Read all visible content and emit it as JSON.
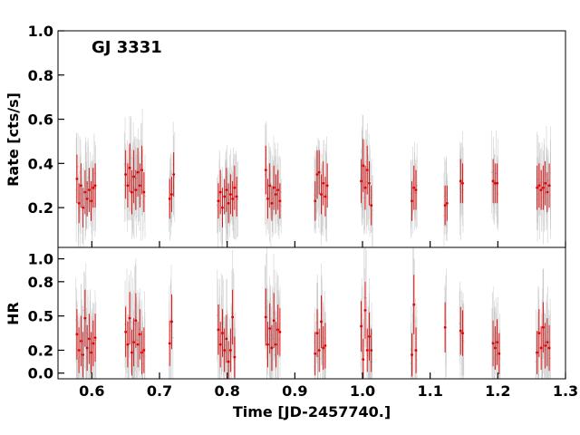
{
  "chart_data": [
    {
      "type": "scatter",
      "panel": "top",
      "title": "GJ 3331",
      "ylabel": "Rate [cts/s]",
      "xlim": [
        0.55,
        1.3
      ],
      "ylim": [
        0.02,
        1.0
      ],
      "yticks": [
        0.2,
        0.4,
        0.6,
        0.8,
        1.0
      ],
      "ytick_labels": [
        "0.2",
        "0.4",
        "0.6",
        "0.8",
        "1.0"
      ],
      "colors": {
        "fine": "#bbbbbb",
        "binned": "#e00000"
      },
      "series": [
        {
          "type": "errorbar",
          "points": [
            [
              0.578,
              0.33,
              0.11
            ],
            [
              0.581,
              0.22,
              0.09
            ],
            [
              0.584,
              0.3,
              0.1
            ],
            [
              0.587,
              0.2,
              0.09
            ],
            [
              0.59,
              0.27,
              0.1
            ],
            [
              0.593,
              0.24,
              0.08
            ],
            [
              0.596,
              0.28,
              0.1
            ],
            [
              0.599,
              0.23,
              0.09
            ],
            [
              0.602,
              0.29,
              0.09
            ],
            [
              0.605,
              0.3,
              0.1
            ],
            [
              0.65,
              0.35,
              0.11
            ],
            [
              0.653,
              0.3,
              0.1
            ],
            [
              0.656,
              0.38,
              0.11
            ],
            [
              0.659,
              0.27,
              0.1
            ],
            [
              0.662,
              0.34,
              0.12
            ],
            [
              0.665,
              0.28,
              0.09
            ],
            [
              0.668,
              0.36,
              0.11
            ],
            [
              0.671,
              0.3,
              0.1
            ],
            [
              0.674,
              0.37,
              0.11
            ],
            [
              0.677,
              0.27,
              0.09
            ],
            [
              0.715,
              0.24,
              0.09
            ],
            [
              0.718,
              0.26,
              0.08
            ],
            [
              0.721,
              0.35,
              0.1
            ],
            [
              0.787,
              0.23,
              0.08
            ],
            [
              0.79,
              0.27,
              0.1
            ],
            [
              0.793,
              0.2,
              0.09
            ],
            [
              0.796,
              0.25,
              0.08
            ],
            [
              0.799,
              0.28,
              0.1
            ],
            [
              0.802,
              0.22,
              0.09
            ],
            [
              0.805,
              0.26,
              0.09
            ],
            [
              0.808,
              0.24,
              0.08
            ],
            [
              0.811,
              0.29,
              0.1
            ],
            [
              0.814,
              0.25,
              0.09
            ],
            [
              0.857,
              0.37,
              0.11
            ],
            [
              0.86,
              0.24,
              0.09
            ],
            [
              0.863,
              0.3,
              0.1
            ],
            [
              0.866,
              0.22,
              0.08
            ],
            [
              0.869,
              0.29,
              0.1
            ],
            [
              0.872,
              0.26,
              0.09
            ],
            [
              0.875,
              0.28,
              0.09
            ],
            [
              0.878,
              0.23,
              0.08
            ],
            [
              0.93,
              0.23,
              0.09
            ],
            [
              0.933,
              0.35,
              0.11
            ],
            [
              0.936,
              0.36,
              0.1
            ],
            [
              0.939,
              0.26,
              0.09
            ],
            [
              0.942,
              0.31,
              0.1
            ],
            [
              0.945,
              0.25,
              0.09
            ],
            [
              0.948,
              0.3,
              0.1
            ],
            [
              0.998,
              0.32,
              0.1
            ],
            [
              1.001,
              0.39,
              0.12
            ],
            [
              1.004,
              0.29,
              0.1
            ],
            [
              1.007,
              0.37,
              0.11
            ],
            [
              1.01,
              0.31,
              0.1
            ],
            [
              1.013,
              0.21,
              0.09
            ],
            [
              1.073,
              0.23,
              0.09
            ],
            [
              1.076,
              0.29,
              0.1
            ],
            [
              1.079,
              0.28,
              0.09
            ],
            [
              1.122,
              0.21,
              0.09
            ],
            [
              1.125,
              0.22,
              0.08
            ],
            [
              1.145,
              0.32,
              0.1
            ],
            [
              1.148,
              0.31,
              0.09
            ],
            [
              1.193,
              0.32,
              0.1
            ],
            [
              1.196,
              0.31,
              0.09
            ],
            [
              1.199,
              0.31,
              0.09
            ],
            [
              1.258,
              0.29,
              0.1
            ],
            [
              1.261,
              0.3,
              0.1
            ],
            [
              1.264,
              0.28,
              0.09
            ],
            [
              1.267,
              0.29,
              0.1
            ],
            [
              1.27,
              0.31,
              0.1
            ],
            [
              1.273,
              0.27,
              0.09
            ],
            [
              1.276,
              0.3,
              0.1
            ]
          ]
        }
      ]
    },
    {
      "type": "scatter",
      "panel": "bottom",
      "xlabel": "Time [JD-2457740.]",
      "ylabel": "HR",
      "xlim": [
        0.55,
        1.3
      ],
      "ylim": [
        -0.05,
        1.1
      ],
      "xticks": [
        0.6,
        0.7,
        0.8,
        0.9,
        1.0,
        1.1,
        1.2,
        1.3
      ],
      "xtick_labels": [
        "0.6",
        "0.7",
        "0.8",
        "0.9",
        "1.0",
        "1.1",
        "1.2",
        "1.3"
      ],
      "yticks": [
        0.0,
        0.2,
        0.5,
        0.8,
        1.0
      ],
      "ytick_labels": [
        "0.0",
        "0.2",
        "0.5",
        "0.8",
        "1.0"
      ],
      "colors": {
        "fine": "#bbbbbb",
        "binned": "#e00000"
      },
      "series": [
        {
          "type": "errorbar",
          "points": [
            [
              0.578,
              0.34,
              0.22
            ],
            [
              0.581,
              0.2,
              0.2
            ],
            [
              0.584,
              0.28,
              0.22
            ],
            [
              0.587,
              0.16,
              0.2
            ],
            [
              0.59,
              0.48,
              0.25
            ],
            [
              0.593,
              0.22,
              0.2
            ],
            [
              0.596,
              0.3,
              0.22
            ],
            [
              0.599,
              0.18,
              0.18
            ],
            [
              0.602,
              0.26,
              0.2
            ],
            [
              0.605,
              0.31,
              0.21
            ],
            [
              0.65,
              0.36,
              0.22
            ],
            [
              0.653,
              0.25,
              0.2
            ],
            [
              0.656,
              0.48,
              0.23
            ],
            [
              0.659,
              0.18,
              0.2
            ],
            [
              0.662,
              0.27,
              0.21
            ],
            [
              0.665,
              0.46,
              0.24
            ],
            [
              0.668,
              0.25,
              0.2
            ],
            [
              0.671,
              0.34,
              0.22
            ],
            [
              0.674,
              0.18,
              0.19
            ],
            [
              0.677,
              0.2,
              0.2
            ],
            [
              0.715,
              0.26,
              0.2
            ],
            [
              0.718,
              0.45,
              0.24
            ],
            [
              0.787,
              0.38,
              0.22
            ],
            [
              0.79,
              0.25,
              0.2
            ],
            [
              0.793,
              0.35,
              0.21
            ],
            [
              0.796,
              0.2,
              0.19
            ],
            [
              0.799,
              0.3,
              0.21
            ],
            [
              0.802,
              0.1,
              0.18
            ],
            [
              0.805,
              0.2,
              0.19
            ],
            [
              0.808,
              0.49,
              0.24
            ],
            [
              0.811,
              0.14,
              0.18
            ],
            [
              0.857,
              0.49,
              0.25
            ],
            [
              0.86,
              0.25,
              0.2
            ],
            [
              0.863,
              0.39,
              0.22
            ],
            [
              0.866,
              0.22,
              0.2
            ],
            [
              0.869,
              0.46,
              0.24
            ],
            [
              0.872,
              0.25,
              0.2
            ],
            [
              0.875,
              0.38,
              0.22
            ],
            [
              0.878,
              0.36,
              0.21
            ],
            [
              0.93,
              0.17,
              0.19
            ],
            [
              0.933,
              0.35,
              0.21
            ],
            [
              0.936,
              0.2,
              0.19
            ],
            [
              0.939,
              0.45,
              0.23
            ],
            [
              0.942,
              0.22,
              0.19
            ],
            [
              0.945,
              0.24,
              0.2
            ],
            [
              0.998,
              0.41,
              0.22
            ],
            [
              1.001,
              0.12,
              0.18
            ],
            [
              1.004,
              0.55,
              0.25
            ],
            [
              1.007,
              0.2,
              0.19
            ],
            [
              1.01,
              0.32,
              0.21
            ],
            [
              1.013,
              0.2,
              0.19
            ],
            [
              1.073,
              0.16,
              0.19
            ],
            [
              1.076,
              0.6,
              0.26
            ],
            [
              1.079,
              0.2,
              0.2
            ],
            [
              1.122,
              0.4,
              0.22
            ],
            [
              1.145,
              0.37,
              0.21
            ],
            [
              1.148,
              0.35,
              0.2
            ],
            [
              1.193,
              0.26,
              0.2
            ],
            [
              1.196,
              0.22,
              0.19
            ],
            [
              1.199,
              0.27,
              0.2
            ],
            [
              1.202,
              0.17,
              0.18
            ],
            [
              1.258,
              0.18,
              0.19
            ],
            [
              1.261,
              0.35,
              0.21
            ],
            [
              1.264,
              0.22,
              0.19
            ],
            [
              1.267,
              0.4,
              0.22
            ],
            [
              1.27,
              0.24,
              0.2
            ],
            [
              1.273,
              0.27,
              0.21
            ],
            [
              1.276,
              0.22,
              0.2
            ]
          ]
        }
      ]
    }
  ]
}
